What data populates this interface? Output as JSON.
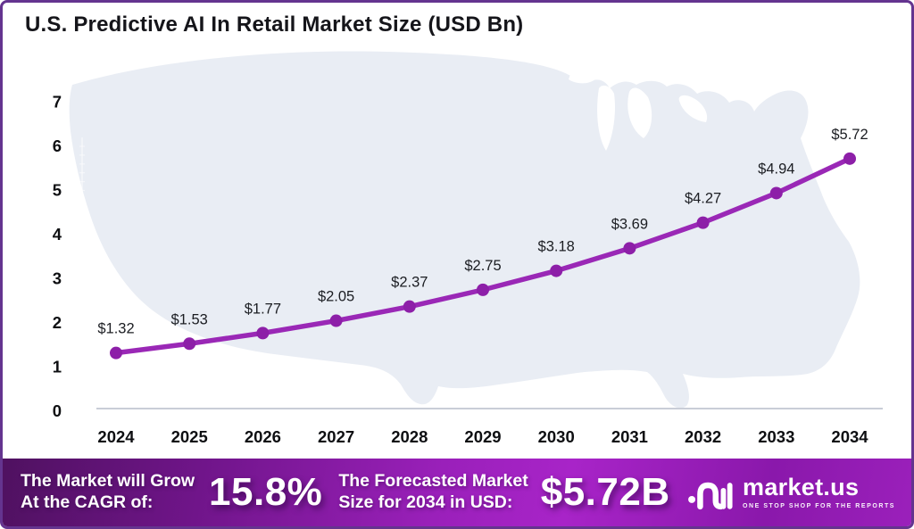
{
  "page": {
    "title": "U.S. Predictive AI In Retail Market Size (USD Bn)"
  },
  "chart_data": {
    "type": "line",
    "title": "U.S. Predictive AI In Retail Market Size (USD Bn)",
    "categories": [
      "2024",
      "2025",
      "2026",
      "2027",
      "2028",
      "2029",
      "2030",
      "2031",
      "2032",
      "2033",
      "2034"
    ],
    "values": [
      1.32,
      1.53,
      1.77,
      2.05,
      2.37,
      2.75,
      3.18,
      3.69,
      4.27,
      4.94,
      5.72
    ],
    "point_labels": [
      "$1.32",
      "$1.53",
      "$1.77",
      "$2.05",
      "$2.37",
      "$2.75",
      "$3.18",
      "$3.69",
      "$4.27",
      "$4.94",
      "$5.72"
    ],
    "xlabel": "",
    "ylabel": "",
    "ylim": [
      0,
      7
    ],
    "yticks": [
      "0",
      "1",
      "2",
      "3",
      "4",
      "5",
      "6",
      "7"
    ],
    "grid": false,
    "legend": "none",
    "line_color": "#9a28b6",
    "marker_color": "#8d1fa8",
    "background": "us-map-silhouette"
  },
  "footer": {
    "cagr_label_line1": "The Market will Grow",
    "cagr_label_line2": "At the CAGR of:",
    "cagr_value": "15.8%",
    "forecast_label_line1": "The Forecasted Market",
    "forecast_label_line2": "Size for 2034 in USD:",
    "forecast_value": "$5.72B",
    "brand_name": "market.us",
    "brand_tagline": "ONE STOP SHOP FOR THE REPORTS",
    "logo_icon": "market-us-swoosh-icon"
  },
  "colors": {
    "accent_line": "#9a28b6",
    "map_fill": "#e9edf4",
    "frame_border": "#64348f",
    "footer_gradient_start": "#4f1160",
    "footer_gradient_mid": "#a824c8",
    "footer_gradient_end": "#9b20bb",
    "text_dark": "#15151a",
    "text_light": "#ffffff"
  }
}
